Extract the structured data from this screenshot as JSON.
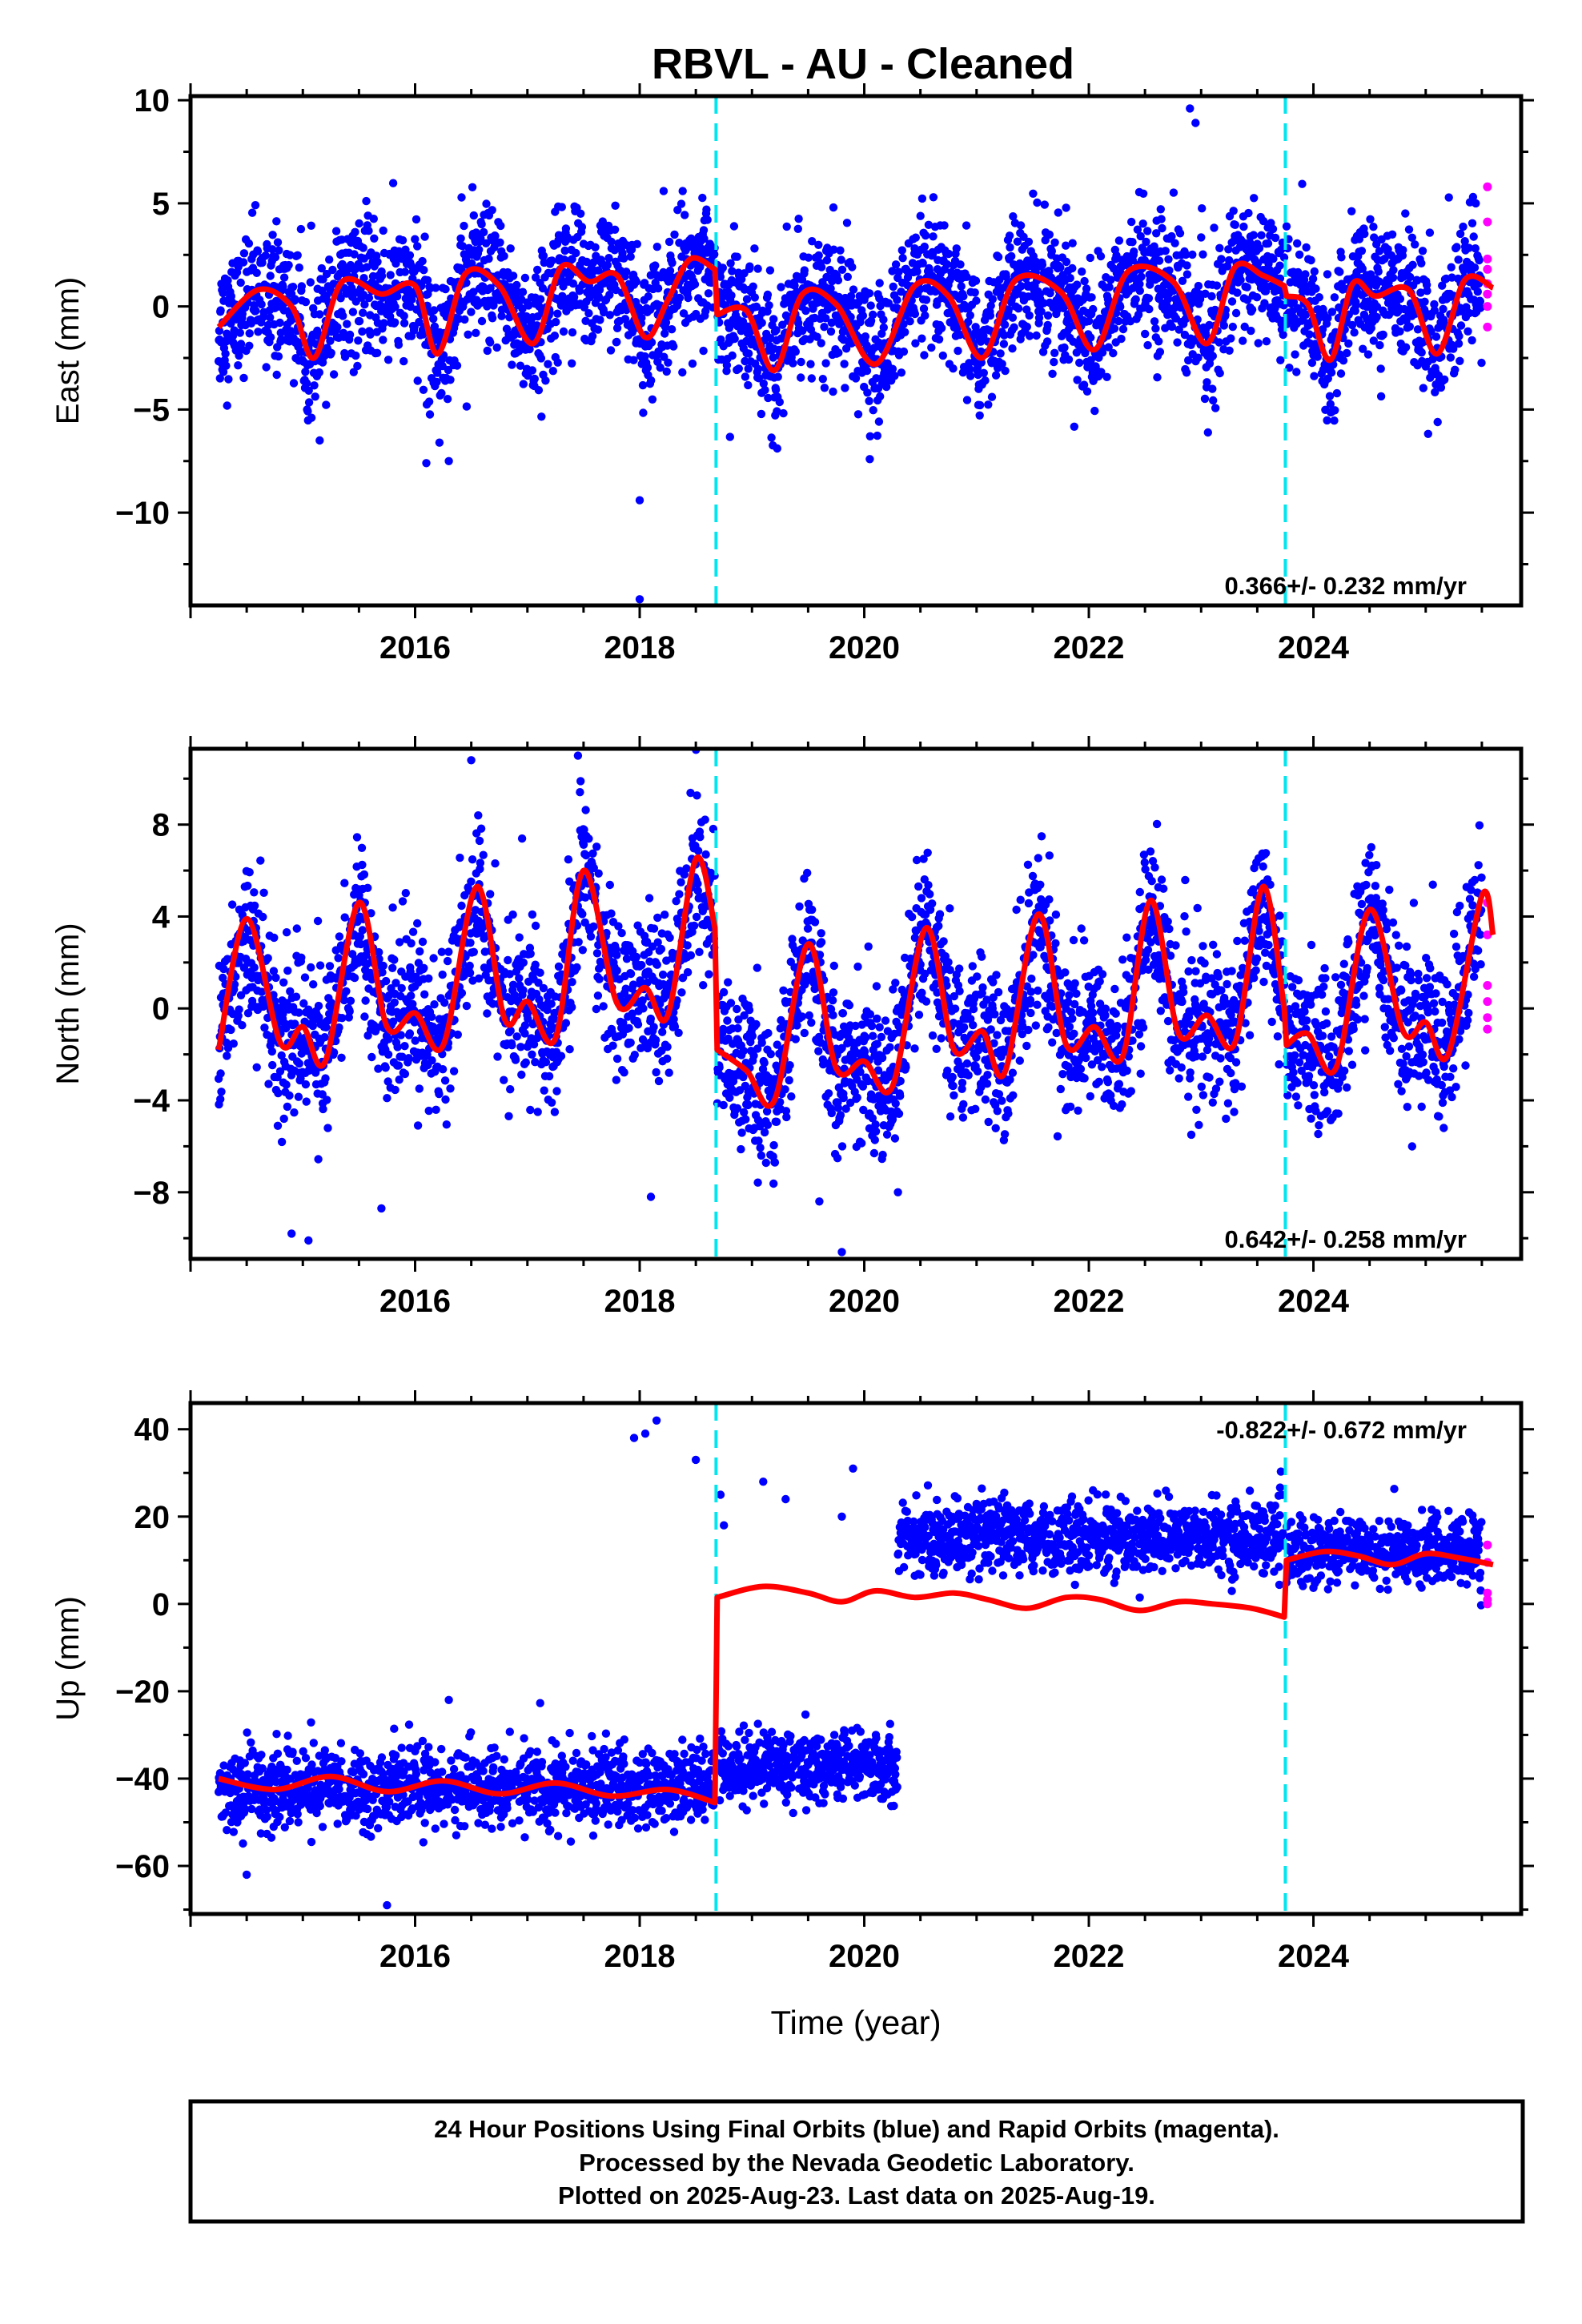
{
  "title": "RBVL  - AU - Cleaned",
  "colors": {
    "final_orbits": "#0000ff",
    "rapid_orbits": "#ff00ff",
    "model": "#ff0000",
    "offset": "#00e5ee",
    "frame": "#000000"
  },
  "caption": {
    "line1": "24 Hour Positions Using Final Orbits (blue) and Rapid Orbits (magenta).",
    "line2": "Processed by the Nevada Geodetic Laboratory.",
    "line3": "Plotted on 2025-Aug-23. Last data on 2025-Aug-19."
  },
  "chart_data": [
    {
      "type": "scatter",
      "component": "east",
      "ylabel": "East (mm)",
      "xlabel": "",
      "xlim": [
        2014.0,
        2025.85
      ],
      "ylim": [
        -14.5,
        10.2
      ],
      "xticks": [
        2016,
        2018,
        2020,
        2022,
        2024
      ],
      "yticks": [
        -10,
        -5,
        0,
        5,
        10
      ],
      "offsets": [
        2018.68,
        2023.75
      ],
      "rate_text": "0.366+/- 0.232 mm/yr",
      "rate_position": "bottom-right",
      "model": {
        "segments": [
          {
            "x": [
              2014.25,
              2014.6,
              2014.9,
              2015.1,
              2015.35,
              2015.7,
              2016.0,
              2016.2,
              2016.45,
              2016.75,
              2017.05,
              2017.3,
              2017.55,
              2017.8,
              2018.05,
              2018.25,
              2018.45,
              2018.67
            ],
            "y": [
              -1.0,
              0.8,
              0.0,
              -2.5,
              1.2,
              0.6,
              1.0,
              -2.3,
              1.6,
              1.0,
              -1.8,
              1.9,
              1.2,
              1.5,
              -1.5,
              0.3,
              2.3,
              1.8
            ]
          },
          {
            "x": [
              2018.69,
              2018.95,
              2019.2,
              2019.45,
              2019.75,
              2020.1,
              2020.45,
              2020.75,
              2021.05,
              2021.35,
              2021.75,
              2022.05,
              2022.35,
              2022.75,
              2023.05,
              2023.3,
              2023.55,
              2023.74
            ],
            "y": [
              -0.4,
              -0.2,
              -3.1,
              0.6,
              0.1,
              -2.8,
              1.0,
              0.5,
              -2.5,
              1.3,
              0.7,
              -2.1,
              1.7,
              1.2,
              -1.8,
              1.9,
              1.5,
              1.0
            ]
          },
          {
            "x": [
              2023.76,
              2023.95,
              2024.15,
              2024.35,
              2024.55,
              2024.85,
              2025.1,
              2025.35,
              2025.6
            ],
            "y": [
              0.5,
              0.1,
              -2.6,
              1.1,
              0.5,
              0.8,
              -2.3,
              1.3,
              0.9
            ]
          }
        ]
      },
      "series": [
        {
          "name": "Final Orbits",
          "x_range": [
            2014.25,
            2025.5
          ],
          "spread": 1.6,
          "outliers": [
            [
              2016.1,
              -7.6
            ],
            [
              2016.3,
              -7.5
            ],
            [
              2018.0,
              -9.4
            ],
            [
              2018.0,
              -14.2
            ],
            [
              2022.9,
              9.6
            ],
            [
              2022.95,
              8.9
            ],
            [
              2023.1,
              -4.0
            ],
            [
              2015.15,
              -6.5
            ]
          ]
        },
        {
          "name": "Rapid Orbits",
          "x": [
            2025.55,
            2025.55,
            2025.55,
            2025.55,
            2025.55,
            2025.55,
            2025.55,
            2025.55
          ],
          "y": [
            5.8,
            4.1,
            2.3,
            1.8,
            1.1,
            0.6,
            0.0,
            -1.0
          ]
        }
      ]
    },
    {
      "type": "scatter",
      "component": "north",
      "ylabel": "North (mm)",
      "xlabel": "",
      "xlim": [
        2014.0,
        2025.85
      ],
      "ylim": [
        -10.9,
        11.3
      ],
      "xticks": [
        2016,
        2018,
        2020,
        2022,
        2024
      ],
      "yticks": [
        -8,
        -4,
        0,
        4,
        8
      ],
      "offsets": [
        2018.68,
        2023.75
      ],
      "rate_text": "0.642+/- 0.258 mm/yr",
      "rate_position": "bottom-right",
      "model": {
        "segments": [
          {
            "x": [
              2014.25,
              2014.5,
              2014.8,
              2015.0,
              2015.2,
              2015.5,
              2015.75,
              2016.0,
              2016.25,
              2016.55,
              2016.8,
              2017.0,
              2017.25,
              2017.5,
              2017.8,
              2018.05,
              2018.25,
              2018.5,
              2018.67
            ],
            "y": [
              -1.8,
              3.9,
              -1.5,
              -0.8,
              -2.3,
              4.6,
              -0.8,
              -0.2,
              -1.6,
              5.3,
              -0.5,
              0.3,
              -1.3,
              6.0,
              0.2,
              0.9,
              -0.3,
              6.5,
              3.5
            ]
          },
          {
            "x": [
              2018.69,
              2018.95,
              2019.2,
              2019.5,
              2019.75,
              2020.0,
              2020.25,
              2020.55,
              2020.8,
              2021.05,
              2021.25,
              2021.55,
              2021.8,
              2022.05,
              2022.3,
              2022.55,
              2022.8,
              2023.05,
              2023.3,
              2023.55,
              2023.74
            ],
            "y": [
              -1.8,
              -2.7,
              -4.0,
              2.8,
              -2.6,
              -2.3,
              -3.4,
              3.5,
              -1.8,
              -1.0,
              -2.8,
              4.1,
              -1.6,
              -0.8,
              -2.1,
              4.7,
              -1.1,
              -0.3,
              -1.5,
              5.3,
              0.0
            ]
          },
          {
            "x": [
              2023.76,
              2023.95,
              2024.2,
              2024.5,
              2024.8,
              2025.0,
              2025.2,
              2025.5,
              2025.6
            ],
            "y": [
              -1.6,
              -1.1,
              -2.6,
              4.3,
              -1.0,
              -0.6,
              -2.0,
              4.9,
              3.2
            ]
          }
        ]
      },
      "series": [
        {
          "name": "Final Orbits",
          "x_range": [
            2014.25,
            2025.5
          ],
          "spread": 1.7,
          "outliers": [
            [
              2014.9,
              -9.8
            ],
            [
              2015.05,
              -10.1
            ],
            [
              2015.7,
              -8.7
            ],
            [
              2016.5,
              10.8
            ],
            [
              2017.45,
              11.0
            ],
            [
              2018.1,
              -8.2
            ],
            [
              2019.8,
              -10.6
            ],
            [
              2020.3,
              -8.0
            ],
            [
              2019.6,
              -8.4
            ]
          ]
        },
        {
          "name": "Rapid Orbits",
          "x": [
            2025.55,
            2025.55,
            2025.55,
            2025.55,
            2025.55,
            2025.55
          ],
          "y": [
            4.6,
            3.2,
            0.3,
            -0.4,
            -0.9,
            1.0
          ]
        }
      ]
    },
    {
      "type": "scatter",
      "component": "up",
      "ylabel": "Up (mm)",
      "xlabel": "Time (year)",
      "xlim": [
        2014.0,
        2025.85
      ],
      "ylim": [
        -71,
        46
      ],
      "xticks": [
        2016,
        2018,
        2020,
        2022,
        2024
      ],
      "yticks": [
        -60,
        -40,
        -20,
        0,
        20,
        40
      ],
      "offsets": [
        2018.68,
        2023.75
      ],
      "rate_text": "-0.822+/- 0.672 mm/yr",
      "rate_position": "top-right",
      "model": {
        "segments": [
          {
            "x": [
              2014.25,
              2014.75,
              2015.25,
              2015.75,
              2016.25,
              2016.75,
              2017.25,
              2017.75,
              2018.25,
              2018.67
            ],
            "y": [
              -40,
              -42.5,
              -39.5,
              -43,
              -40.5,
              -43.5,
              -41,
              -44,
              -42.5,
              -45.5
            ]
          },
          {
            "x": [
              2018.69,
              2019.1,
              2019.5,
              2019.8,
              2020.1,
              2020.45,
              2020.8,
              2021.1,
              2021.45,
              2021.8,
              2022.1,
              2022.45,
              2022.8,
              2023.1,
              2023.45,
              2023.74
            ],
            "y": [
              1.5,
              4.0,
              2.5,
              0.5,
              3.0,
              1.5,
              2.5,
              1.0,
              -1.0,
              1.5,
              1.0,
              -1.5,
              0.5,
              0.0,
              -1.0,
              -3.0
            ]
          },
          {
            "x": [
              2023.76,
              2024.1,
              2024.4,
              2024.7,
              2025.0,
              2025.3,
              2025.6
            ],
            "y": [
              10.0,
              12.0,
              11.0,
              9.0,
              11.5,
              10.5,
              9.0
            ]
          }
        ]
      },
      "series": [
        {
          "name": "Final Orbits",
          "groups": [
            {
              "x_range": [
                2014.25,
                2018.66
              ],
              "center": -42,
              "spread": 4.5
            },
            {
              "x_range": [
                2018.7,
                2020.3
              ],
              "center": -37,
              "spread": 4.0
            },
            {
              "x_range": [
                2020.3,
                2023.74
              ],
              "center": 15,
              "spread": 4.0
            },
            {
              "x_range": [
                2023.76,
                2025.5
              ],
              "center": 12,
              "spread": 4.0
            }
          ],
          "outliers": [
            [
              2018.05,
              39
            ],
            [
              2018.15,
              42
            ],
            [
              2017.95,
              38
            ],
            [
              2018.5,
              33
            ],
            [
              2018.72,
              25
            ],
            [
              2018.75,
              18
            ],
            [
              2019.1,
              28
            ],
            [
              2019.3,
              24
            ],
            [
              2019.8,
              20
            ],
            [
              2019.9,
              31
            ],
            [
              2015.75,
              -69
            ],
            [
              2014.5,
              -62
            ],
            [
              2016.3,
              -22
            ]
          ]
        },
        {
          "name": "Rapid Orbits",
          "x": [
            2025.55,
            2025.55,
            2025.55,
            2025.55,
            2025.55
          ],
          "y": [
            13.5,
            9.5,
            2.5,
            1.0,
            0.0
          ]
        }
      ]
    }
  ]
}
